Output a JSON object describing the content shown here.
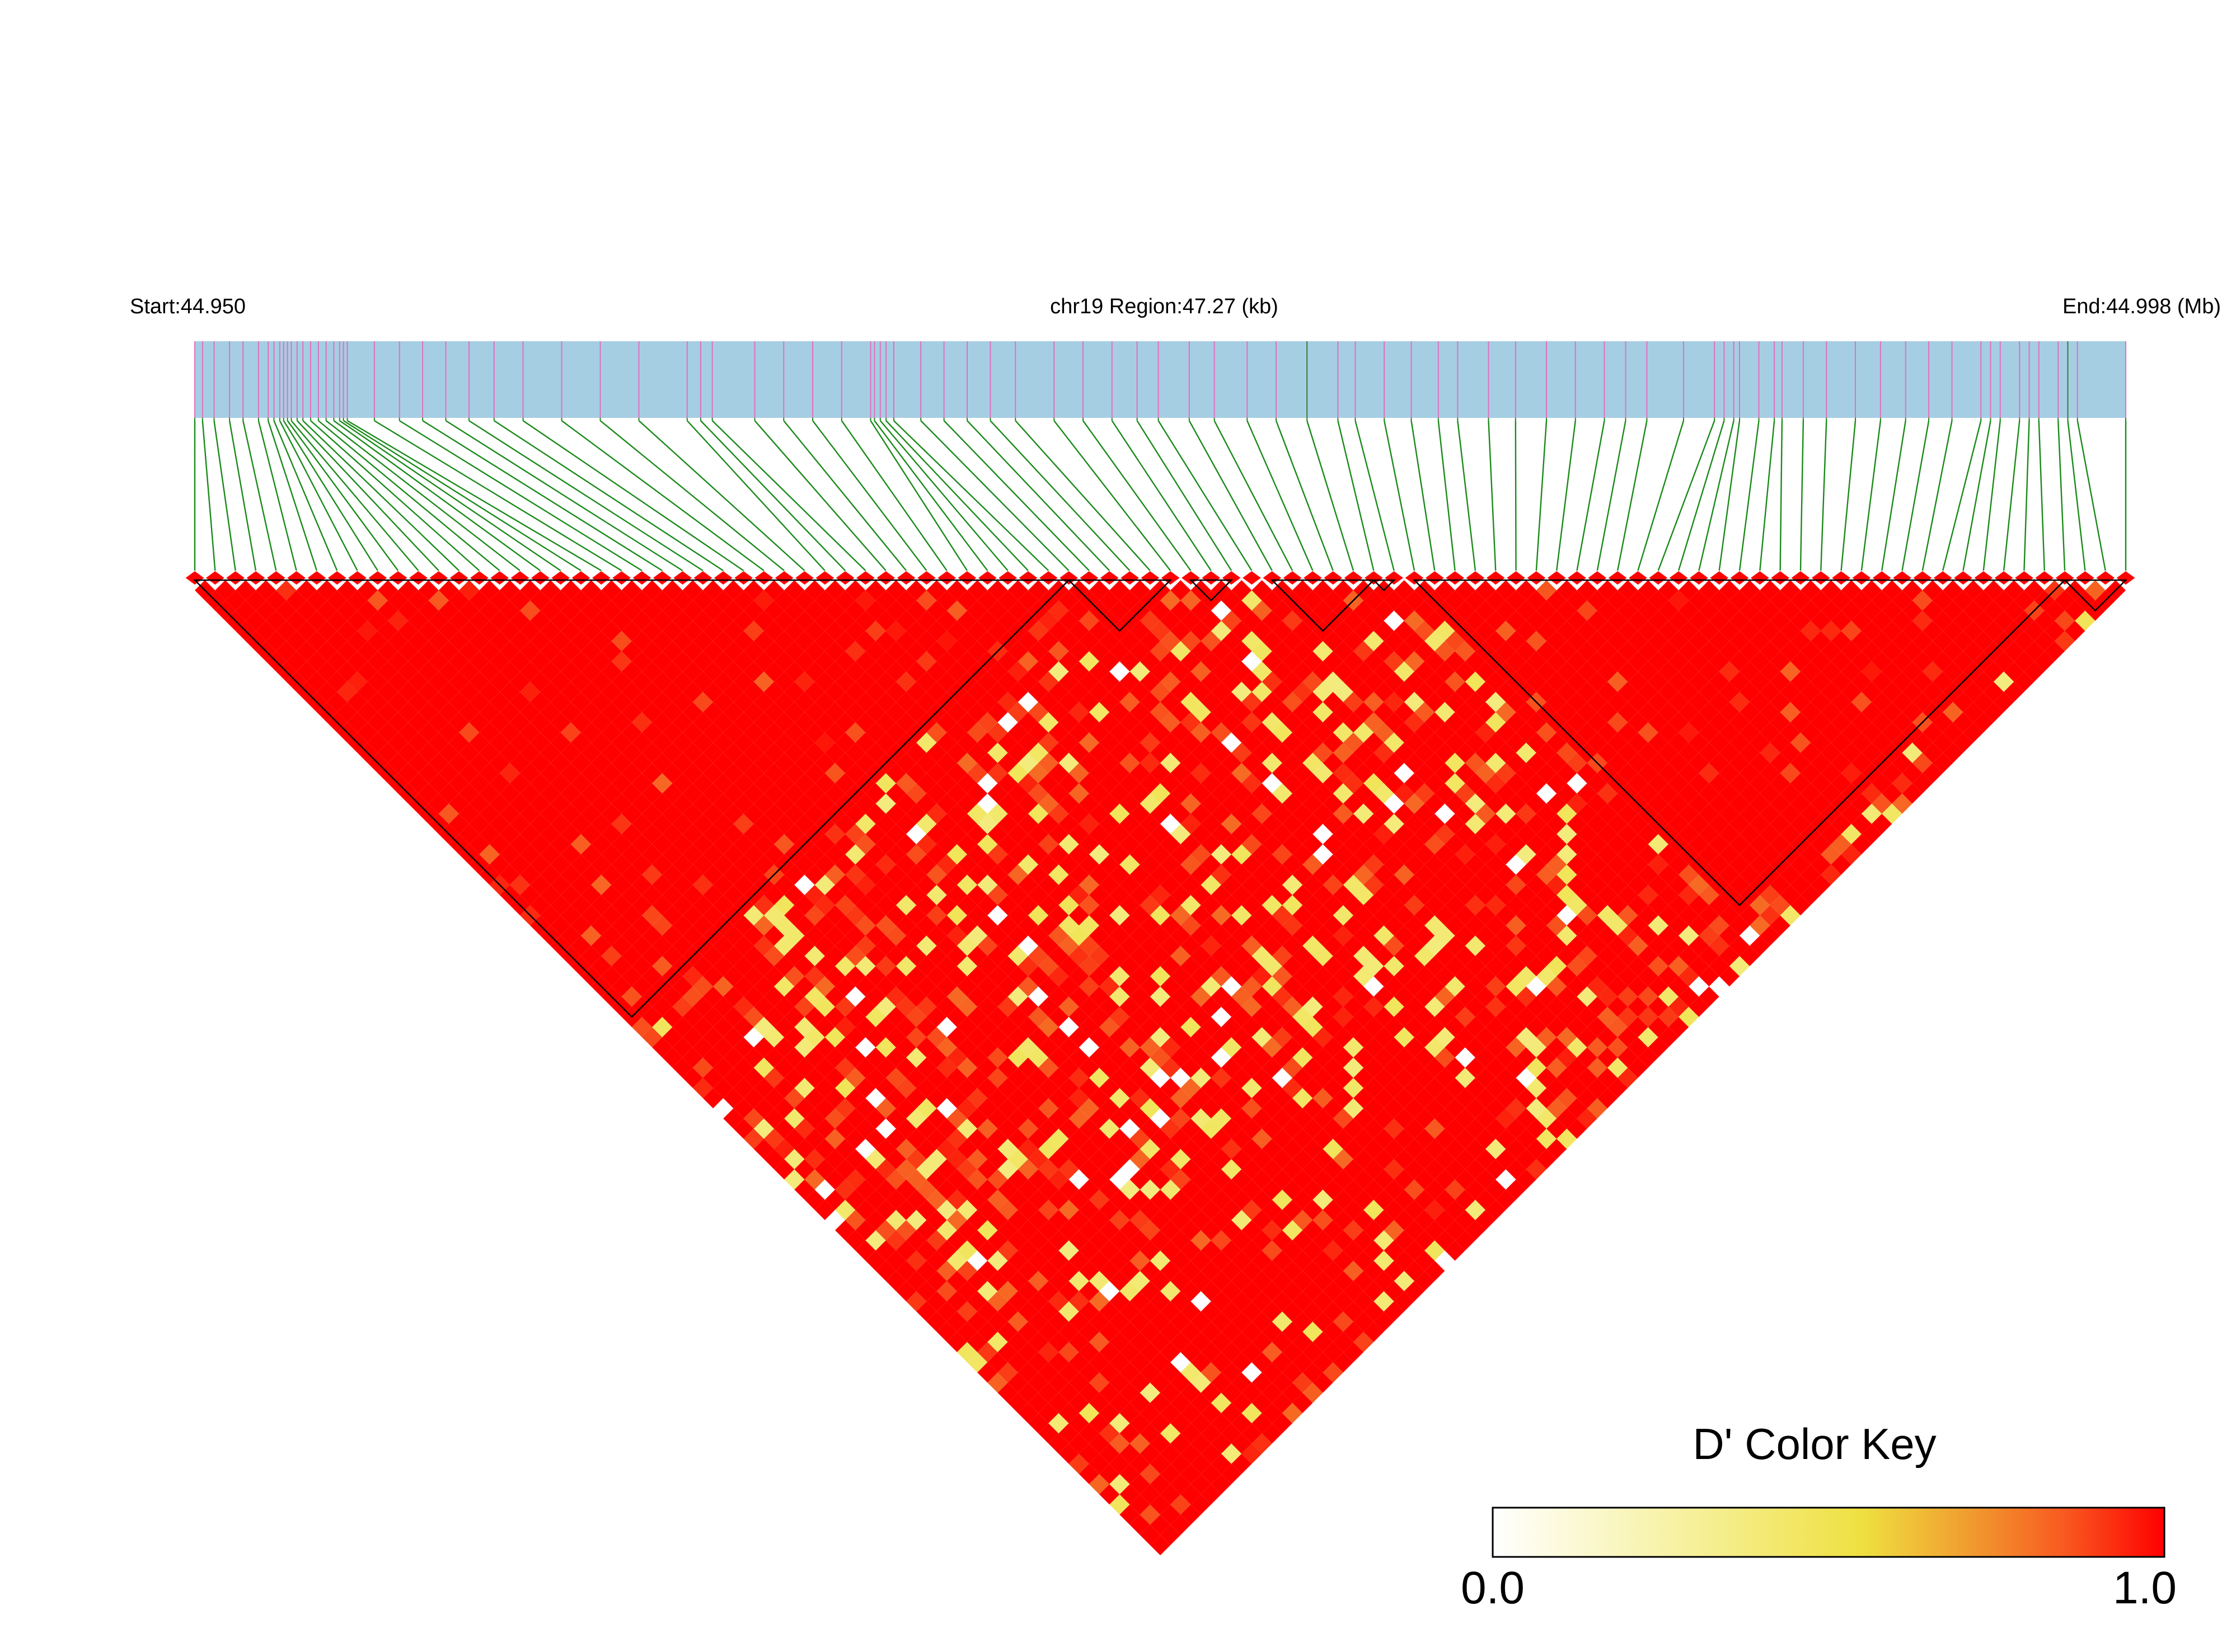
{
  "chart_data": {
    "type": "heatmap",
    "subtype": "LD triangle (D')",
    "chromosome": "chr19",
    "header": {
      "start_label": "Start:44.950",
      "region_label": "chr19 Region:47.27 (kb)",
      "end_label": "End:44.998 (Mb)"
    },
    "region": {
      "start_mb": 44.95,
      "end_mb": 44.998,
      "length_kb": 47.27
    },
    "snp_count": 96,
    "snp_positions_fraction": [
      0.0,
      0.004,
      0.01,
      0.018,
      0.025,
      0.033,
      0.038,
      0.041,
      0.044,
      0.046,
      0.048,
      0.05,
      0.053,
      0.056,
      0.06,
      0.064,
      0.068,
      0.072,
      0.075,
      0.077,
      0.079,
      0.093,
      0.106,
      0.118,
      0.13,
      0.142,
      0.155,
      0.17,
      0.19,
      0.21,
      0.23,
      0.255,
      0.262,
      0.268,
      0.29,
      0.305,
      0.32,
      0.335,
      0.35,
      0.352,
      0.355,
      0.358,
      0.362,
      0.376,
      0.388,
      0.4,
      0.412,
      0.425,
      0.445,
      0.46,
      0.475,
      0.488,
      0.499,
      0.515,
      0.528,
      0.545,
      0.56,
      0.576,
      0.592,
      0.601,
      0.616,
      0.63,
      0.644,
      0.654,
      0.67,
      0.684,
      0.7,
      0.715,
      0.73,
      0.741,
      0.752,
      0.771,
      0.787,
      0.792,
      0.797,
      0.8,
      0.81,
      0.818,
      0.822,
      0.833,
      0.845,
      0.86,
      0.873,
      0.886,
      0.898,
      0.91,
      0.925,
      0.93,
      0.935,
      0.945,
      0.95,
      0.955,
      0.965,
      0.97,
      0.975,
      1.0
    ],
    "haplotype_blocks": [
      {
        "from_snp": 0,
        "to_snp": 43
      },
      {
        "from_snp": 43,
        "to_snp": 48
      },
      {
        "from_snp": 49,
        "to_snp": 51
      },
      {
        "from_snp": 53,
        "to_snp": 58
      },
      {
        "from_snp": 58,
        "to_snp": 59
      },
      {
        "from_snp": 60,
        "to_snp": 92
      },
      {
        "from_snp": 92,
        "to_snp": 95
      }
    ],
    "cells_note": "Pairwise D' values are predominantly ~1.0 (red) with scattered lower values (orange/yellow/white); matrix regenerated procedurally.",
    "colorbar": {
      "title": "D' Color Key",
      "min_label": "0.0",
      "max_label": "1.0",
      "range": [
        0,
        1
      ],
      "colors": [
        "#ffffff",
        "#f0e050",
        "#f08a30",
        "#ff0000"
      ]
    }
  }
}
